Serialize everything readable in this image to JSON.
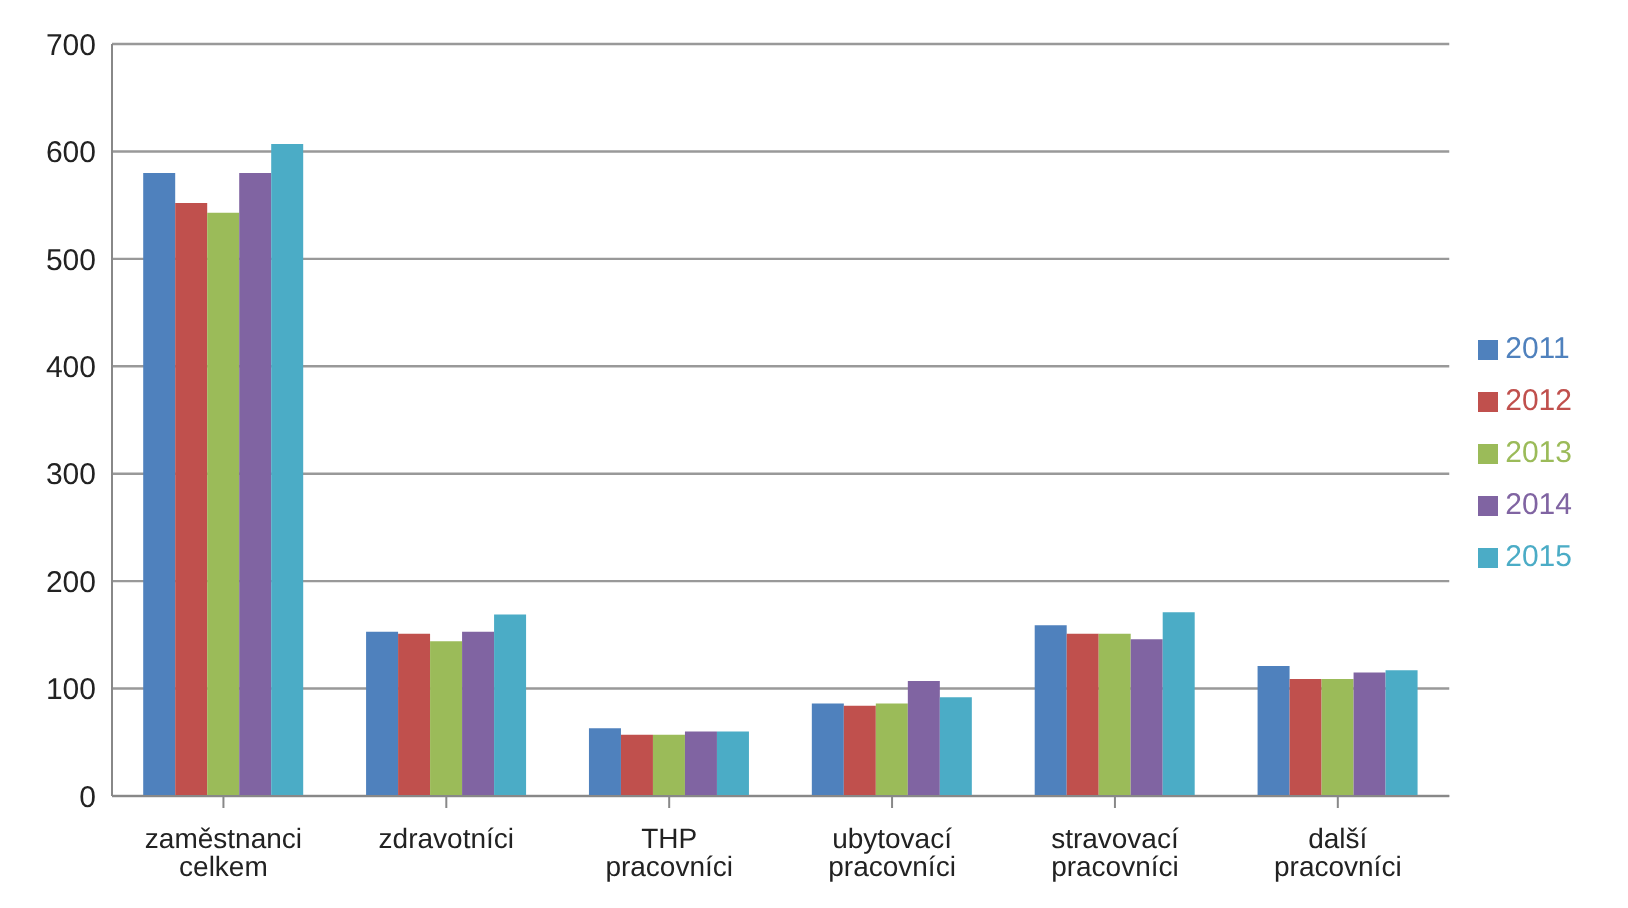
{
  "chart_data": {
    "type": "bar",
    "categories": [
      "zaměstnanci celkem",
      "zdravotníci",
      "THP pracovníci",
      "ubytovací pracovníci",
      "stravovací pracovníci",
      "další pracovníci"
    ],
    "series": [
      {
        "name": "2011",
        "color": "#4f81bd",
        "values": [
          580,
          153,
          63,
          86,
          159,
          121
        ]
      },
      {
        "name": "2012",
        "color": "#c0504d",
        "values": [
          552,
          151,
          57,
          84,
          151,
          109
        ]
      },
      {
        "name": "2013",
        "color": "#9bbb59",
        "values": [
          543,
          144,
          57,
          86,
          151,
          109
        ]
      },
      {
        "name": "2014",
        "color": "#8064a2",
        "values": [
          580,
          153,
          60,
          107,
          146,
          115
        ]
      },
      {
        "name": "2015",
        "color": "#4bacc6",
        "values": [
          607,
          169,
          60,
          92,
          171,
          117
        ]
      }
    ],
    "ylim": [
      0,
      700
    ],
    "yticks": [
      0,
      100,
      200,
      300,
      400,
      500,
      600,
      700
    ],
    "grid": "y",
    "legend": "right"
  }
}
